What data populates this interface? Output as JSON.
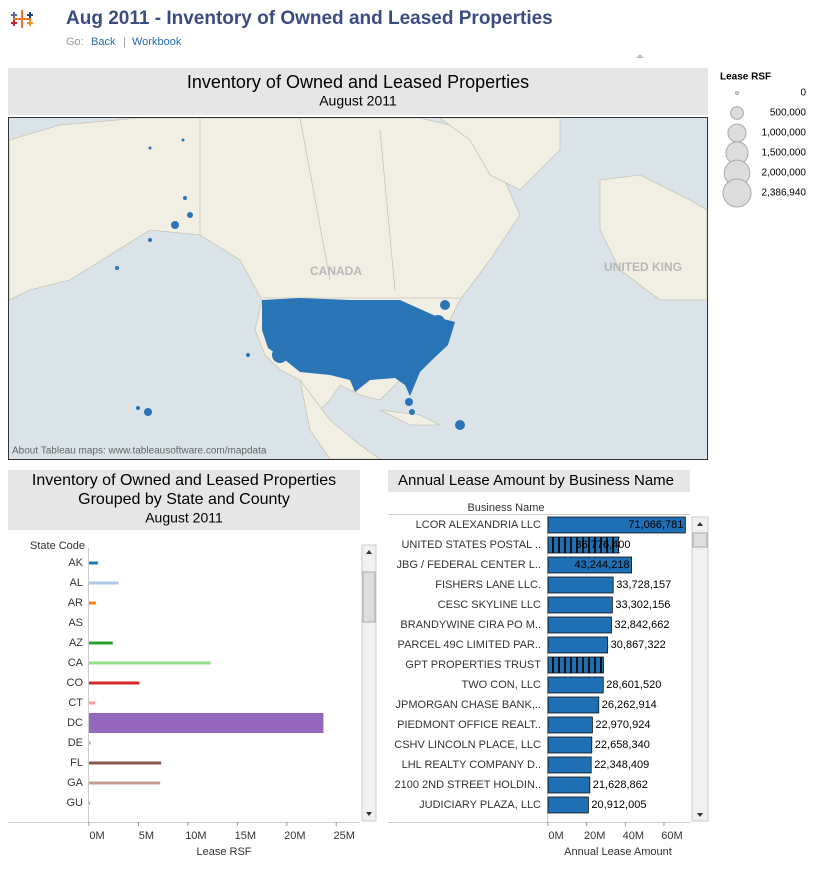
{
  "header": {
    "title": "Aug 2011 - Inventory of Owned and Leased Properties",
    "nav_label": "Go:",
    "links": [
      "Back",
      "Workbook"
    ],
    "separator": "|"
  },
  "map": {
    "title": "Inventory of Owned and Leased Properties",
    "subtitle": "August 2011",
    "labels": [
      "CANADA",
      "UNITED KING"
    ],
    "attribution": "About Tableau maps: www.tableausoftware.com/mapdata"
  },
  "size_legend": {
    "title": "Lease RSF",
    "items": [
      {
        "value": 0,
        "label": "0"
      },
      {
        "value": 500000,
        "label": "500,000"
      },
      {
        "value": 1000000,
        "label": "1,000,000"
      },
      {
        "value": 1500000,
        "label": "1,500,000"
      },
      {
        "value": 2000000,
        "label": "2,000,000"
      },
      {
        "value": 2386940,
        "label": "2,386,940"
      }
    ]
  },
  "chart_data": [
    {
      "type": "bar",
      "title": "Inventory of Owned and Leased Properties",
      "subtitle": "Grouped by State and County",
      "date": "August 2011",
      "category_label": "State Code",
      "x_label": "Lease RSF",
      "categories": [
        "AK",
        "AL",
        "AR",
        "AS",
        "AZ",
        "CA",
        "CO",
        "CT",
        "DC",
        "DE",
        "FL",
        "GA",
        "GU"
      ],
      "values": [
        900000,
        3000000,
        700000,
        0,
        2400000,
        12300000,
        5100000,
        600000,
        23700000,
        200000,
        7300000,
        7200000,
        100000
      ],
      "colors": [
        "#1f77b4",
        "#aec7e8",
        "#ff7f0e",
        "#ffbb78",
        "#2ca02c",
        "#98df8a",
        "#d62728",
        "#ff9896",
        "#9467bd",
        "#c5b0d5",
        "#8c564b",
        "#c49c94",
        "#e377c2"
      ],
      "selected": [
        "DC"
      ],
      "xlim": [
        0,
        27400000
      ],
      "xticks": [
        {
          "value": 0,
          "label": "0M"
        },
        {
          "value": 5000000,
          "label": "5M"
        },
        {
          "value": 10000000,
          "label": "10M"
        },
        {
          "value": 15000000,
          "label": "15M"
        },
        {
          "value": 20000000,
          "label": "20M"
        },
        {
          "value": 25000000,
          "label": "25M"
        }
      ]
    },
    {
      "type": "bar",
      "title": "Annual Lease Amount by Business Name",
      "category_label": "Business Name",
      "x_label": "Annual Lease Amount",
      "color": "#1f6fb4",
      "categories": [
        "LCOR ALEXANDRIA LLC",
        "UNITED STATES POSTAL ..",
        "JBG / FEDERAL CENTER L..",
        "FISHERS LANE LLC.",
        "CESC SKYLINE LLC",
        "BRANDYWINE CIRA PO M..",
        "PARCEL 49C LIMITED PAR..",
        "GPT PROPERTIES TRUST",
        "TWO CON, LLC",
        "JPMORGAN CHASE BANK,..",
        "PIEDMONT OFFICE REALT..",
        "CSHV LINCOLN PLACE, LLC",
        "LHL REALTY COMPANY D..",
        "2100 2ND STREET HOLDIN..",
        "JUDICIARY PLAZA, LLC"
      ],
      "values": [
        71066781,
        36776400,
        43244218,
        33728157,
        33302156,
        32842662,
        30867322,
        28700000,
        28601520,
        26262914,
        22970924,
        22658340,
        22348409,
        21628862,
        20912005
      ],
      "value_labels": [
        "71,066,781",
        "36,776,400",
        "43,244,218",
        "33,728,157",
        "33,302,156",
        "32,842,662",
        "30,867,322",
        null,
        "28,601,520",
        "26,262,914",
        "22,970,924",
        "22,658,340",
        "22,348,409",
        "21,628,862",
        "20,912,005"
      ],
      "selected": [
        "UNITED STATES POSTAL ..",
        "GPT PROPERTIES TRUST"
      ],
      "xlim": [
        0,
        74500000
      ],
      "xticks": [
        {
          "value": 0,
          "label": "0M"
        },
        {
          "value": 20000000,
          "label": "20M"
        },
        {
          "value": 40000000,
          "label": "40M"
        },
        {
          "value": 60000000,
          "label": "60M"
        }
      ]
    }
  ]
}
